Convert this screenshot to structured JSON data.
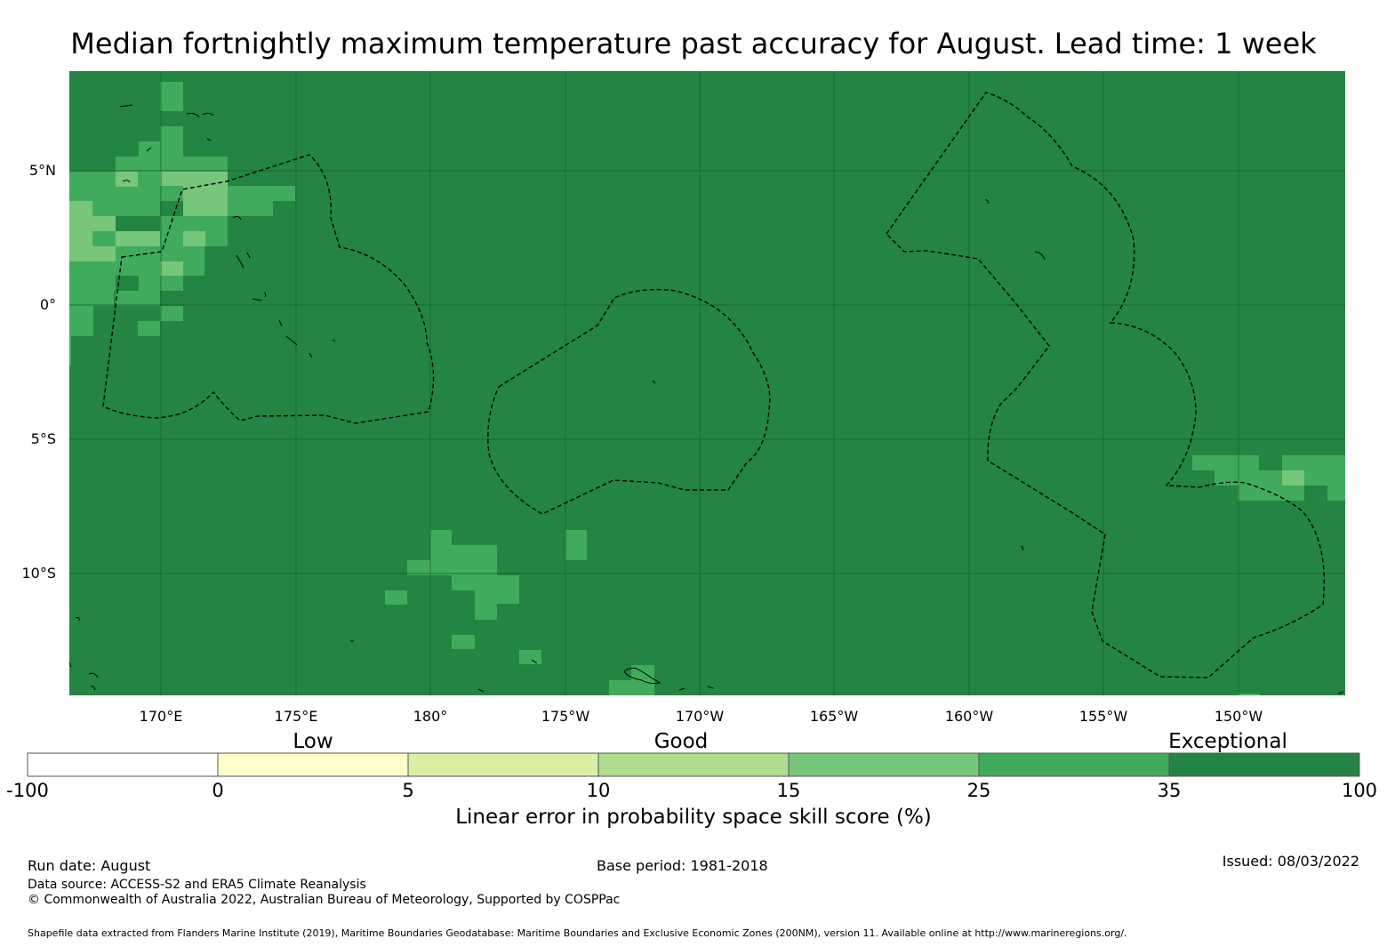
{
  "title": "Median fortnightly maximum temperature past accuracy for August. Lead time: 1 week",
  "map": {
    "lon_ticks": [
      "170°E",
      "175°E",
      "180°",
      "175°W",
      "170°W",
      "165°W",
      "160°W",
      "155°W",
      "150°W"
    ],
    "lat_ticks": [
      "5°N",
      "0°",
      "5°S",
      "10°S"
    ],
    "colors": {
      "exceptional_dark": "#238443",
      "band_25_35": "#41ab5d",
      "band_15_25": "#78c679"
    }
  },
  "colorbar": {
    "categories": [
      "Low",
      "Good",
      "Exceptional"
    ],
    "boundaries": [
      "-100",
      "0",
      "5",
      "10",
      "15",
      "25",
      "35",
      "100"
    ],
    "colors": [
      "#ffffff",
      "#ffffcc",
      "#d9f0a3",
      "#addd8e",
      "#78c679",
      "#41ab5d",
      "#238443"
    ],
    "label": "Linear error in probability space skill score (%)"
  },
  "footer": {
    "run_date": "Run date: August",
    "base_period": "Base period: 1981-2018",
    "issued": "Issued: 08/03/2022",
    "data_source": "Data source: ACCESS-S2 and ERA5 Climate Reanalysis",
    "copyright": "© Commonwealth of Australia 2022, Australian Bureau of Meteorology, Supported by COSPPac",
    "shapefile": "Shapefile data extracted from Flanders Marine Institute (2019), Maritime Boundaries Geodatabase: Maritime Boundaries and Exclusive Economic Zones (200NM), version 11. Available online at http://www.marineregions.org/."
  }
}
